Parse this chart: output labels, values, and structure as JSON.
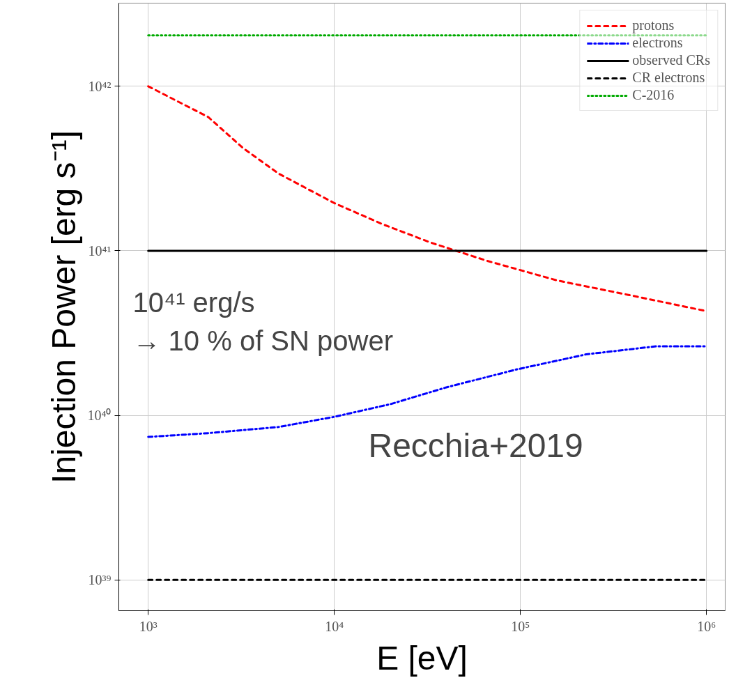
{
  "chart_data": {
    "type": "line",
    "xlabel": "E [eV]",
    "ylabel": "Injection Power [erg s⁻¹]",
    "log": "xy",
    "grid": true,
    "legend": "top right",
    "xlim": [
      695,
      1260000
    ],
    "ylim": [
      6.5e+38,
      3.2e+42
    ],
    "xticks": [
      {
        "value": 1000,
        "label": "10³"
      },
      {
        "value": 10000,
        "label": "10⁴"
      },
      {
        "value": 100000,
        "label": "10⁵"
      },
      {
        "value": 1000000,
        "label": "10⁶"
      }
    ],
    "yticks": [
      {
        "value": 1e+39,
        "label": "10³⁹"
      },
      {
        "value": 1e+40,
        "label": "10⁴⁰"
      },
      {
        "value": 1e+41,
        "label": "10⁴¹"
      },
      {
        "value": 1e+42,
        "label": "10⁴²"
      }
    ],
    "series": [
      {
        "name": "protons",
        "color": "#ff0000",
        "line_style": "dashed",
        "x": [
          1000,
          2100,
          3240,
          5010,
          10000,
          18200,
          33100,
          66100,
          158000,
          380000,
          1000000
        ],
        "values": [
          1e+42,
          6.5e+41,
          4.2e+41,
          2.95e+41,
          1.95e+41,
          1.45e+41,
          1.12e+41,
          8.7e+40,
          6.6e+40,
          5.4e+40,
          4.3e+40
        ]
      },
      {
        "name": "electrons",
        "color": "#0000ff",
        "line_style": "dashdot",
        "x": [
          1000,
          2100,
          5010,
          10000,
          20000,
          40000,
          95000,
          226000,
          537000,
          1000000
        ],
        "values": [
          7.4e+39,
          7.8e+39,
          8.5e+39,
          9.8e+39,
          1.17e+40,
          1.48e+40,
          1.9e+40,
          2.35e+40,
          2.63e+40,
          2.63e+40
        ]
      },
      {
        "name": "observed CRs",
        "color": "#000000",
        "line_style": "solid",
        "x": [
          1000,
          1000000
        ],
        "values": [
          1e+41,
          1e+41
        ]
      },
      {
        "name": "CR electrons",
        "color": "#000000",
        "line_style": "dashed",
        "x": [
          1000,
          1000000
        ],
        "values": [
          1e+39,
          1e+39
        ]
      },
      {
        "name": "C-2016",
        "color": "#00aa00",
        "line_style": "dotted",
        "x": [
          1000,
          1000000
        ],
        "values": [
          2.04e+42,
          2.04e+42
        ]
      }
    ],
    "annotations": [
      "10⁴¹ erg/s",
      "→ 10 % of SN power",
      "Recchia+2019"
    ]
  }
}
